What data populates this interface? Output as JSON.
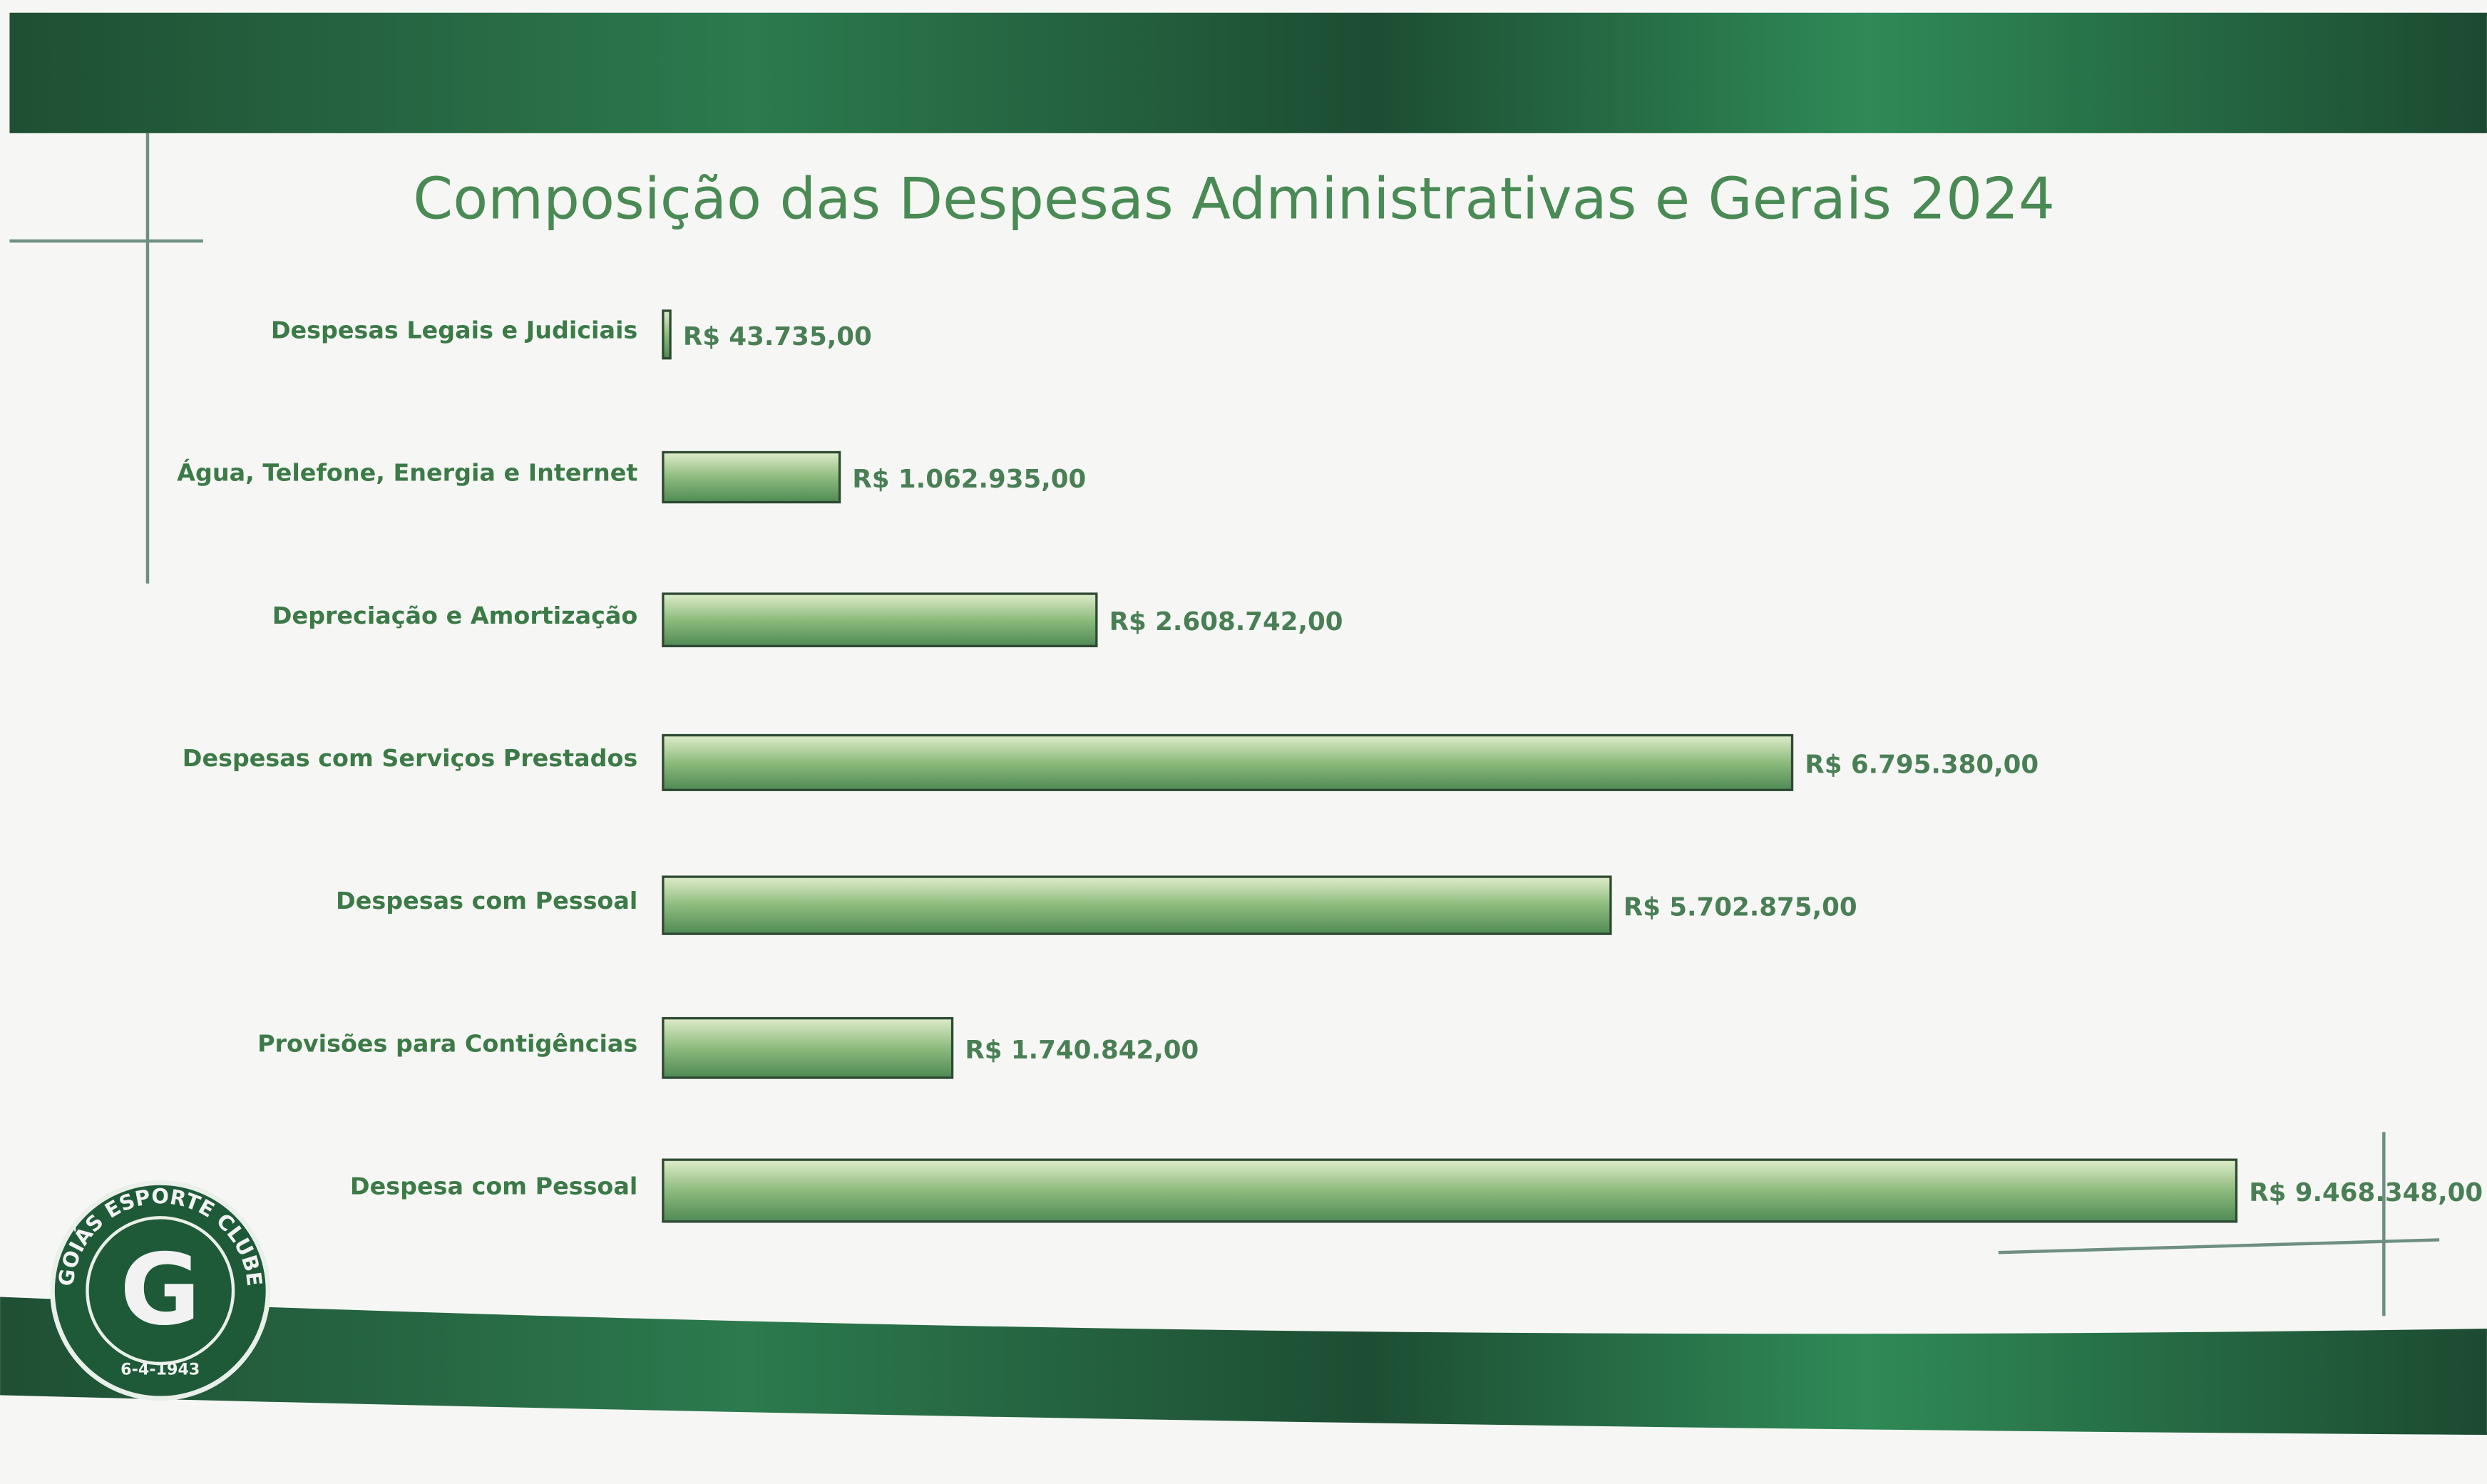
{
  "chart_data": {
    "type": "barh",
    "title": "Composição das Despesas Administrativas e Gerais 2024",
    "categories": [
      "Despesas Legais e Judiciais",
      "Água, Telefone, Energia e Internet",
      "Depreciação e Amortização",
      "Despesas com Serviços Prestados",
      "Despesas com Pessoal",
      "Provisões para Contigências",
      "Despesa com Pessoal"
    ],
    "values": [
      43735,
      1062935,
      2608742,
      6795380,
      5702875,
      1740842,
      9468348
    ],
    "value_labels": [
      "R$ 43.735,00",
      "R$ 1.062.935,00",
      "R$ 2.608.742,00",
      "R$ 6.795.380,00",
      "R$ 5.702.875,00",
      "R$ 1.740.842,00",
      "R$ 9.468.348,00"
    ],
    "color": "#7fae72"
  },
  "logo": {
    "name": "GOIÁS ESPORTE CLUBE",
    "letter": "G",
    "date": "6-4-1943"
  }
}
